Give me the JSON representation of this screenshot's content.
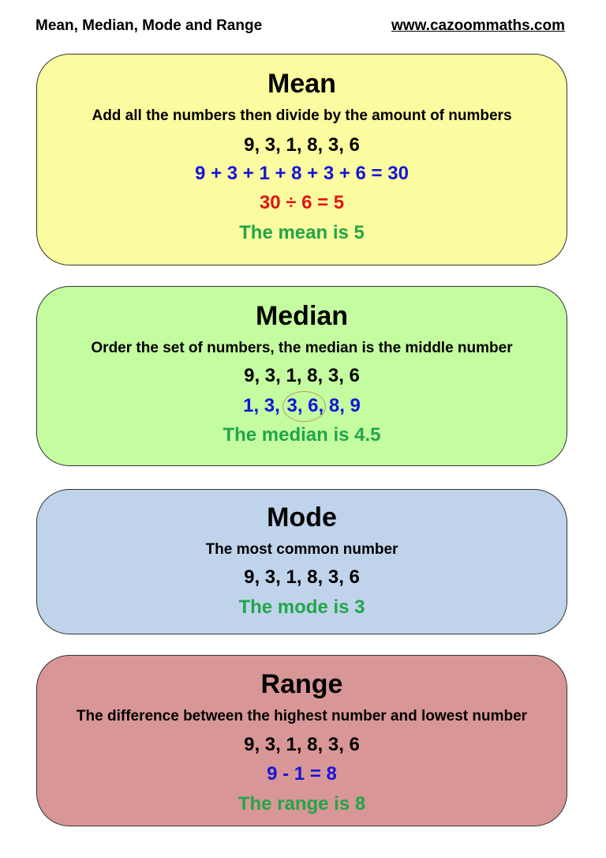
{
  "header": {
    "title": "Mean, Median, Mode and Range",
    "url": "www.cazoommaths.com"
  },
  "colors": {
    "mean_bg": "#fbfb9f",
    "median_bg": "#c4fca0",
    "mode_bg": "#bfd3ea",
    "range_bg": "#d99696",
    "blue": "#1515d8",
    "red": "#e01515",
    "green": "#22a54a"
  },
  "mean": {
    "title": "Mean",
    "description": "Add all the numbers then divide by the amount of numbers",
    "numbers": "9, 3, 1, 8, 3, 6",
    "sum": "9 + 3 + 1 + 8 + 3 + 6 = 30",
    "division": "30 ÷ 6 = 5",
    "result": "The mean is 5"
  },
  "median": {
    "title": "Median",
    "description": "Order the set of numbers, the median is the middle number",
    "numbers": "9, 3, 1, 8, 3, 6",
    "ordered_before": "1, 3, ",
    "ordered_middle": "3, 6,",
    "ordered_after": " 8, 9",
    "result": "The median is 4.5"
  },
  "mode": {
    "title": "Mode",
    "description": "The most common number",
    "numbers": "9, 3, 1, 8, 3, 6",
    "result": "The mode is 3"
  },
  "range": {
    "title": "Range",
    "description": "The difference between the highest number and lowest number",
    "numbers": "9, 3, 1, 8, 3, 6",
    "calc": "9 - 1 = 8",
    "result": "The range is 8"
  }
}
